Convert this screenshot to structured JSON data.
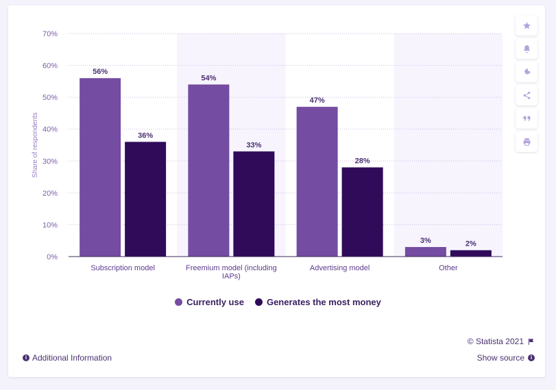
{
  "colors": {
    "currently_use": "#744ca1",
    "most_money": "#2f0b5a",
    "band": "#f7f4fd",
    "grid": "#c9bde0",
    "axis": "#3a2a55"
  },
  "chart_data": {
    "type": "bar",
    "categories": [
      "Subscription model",
      "Freemium model (including IAPs)",
      "Advertising model",
      "Other"
    ],
    "category_lines": [
      [
        "Subscription model"
      ],
      [
        "Freemium model (including",
        "IAPs)"
      ],
      [
        "Advertising model"
      ],
      [
        "Other"
      ]
    ],
    "series": [
      {
        "name": "Currently use",
        "values": [
          56,
          54,
          47,
          3
        ],
        "labels": [
          "56%",
          "54%",
          "47%",
          "3%"
        ]
      },
      {
        "name": "Generates the most money",
        "values": [
          36,
          33,
          28,
          2
        ],
        "labels": [
          "36%",
          "33%",
          "28%",
          "2%"
        ]
      }
    ],
    "ylabel": "Share of respondents",
    "ylim": [
      0,
      70
    ],
    "yticks": [
      0,
      10,
      20,
      30,
      40,
      50,
      60,
      70
    ],
    "ytick_labels": [
      "0%",
      "10%",
      "20%",
      "30%",
      "40%",
      "50%",
      "60%",
      "70%"
    ],
    "grid": true,
    "legend_position": "bottom-center"
  },
  "legend": {
    "items": [
      {
        "label": "Currently use"
      },
      {
        "label": "Generates the most money"
      }
    ]
  },
  "toolbar": {
    "icons": [
      "star-icon",
      "bell-icon",
      "gear-icon",
      "share-icon",
      "quote-icon",
      "print-icon"
    ]
  },
  "footer": {
    "copyright": "© Statista 2021",
    "additional_info": "Additional Information",
    "show_source": "Show source"
  }
}
